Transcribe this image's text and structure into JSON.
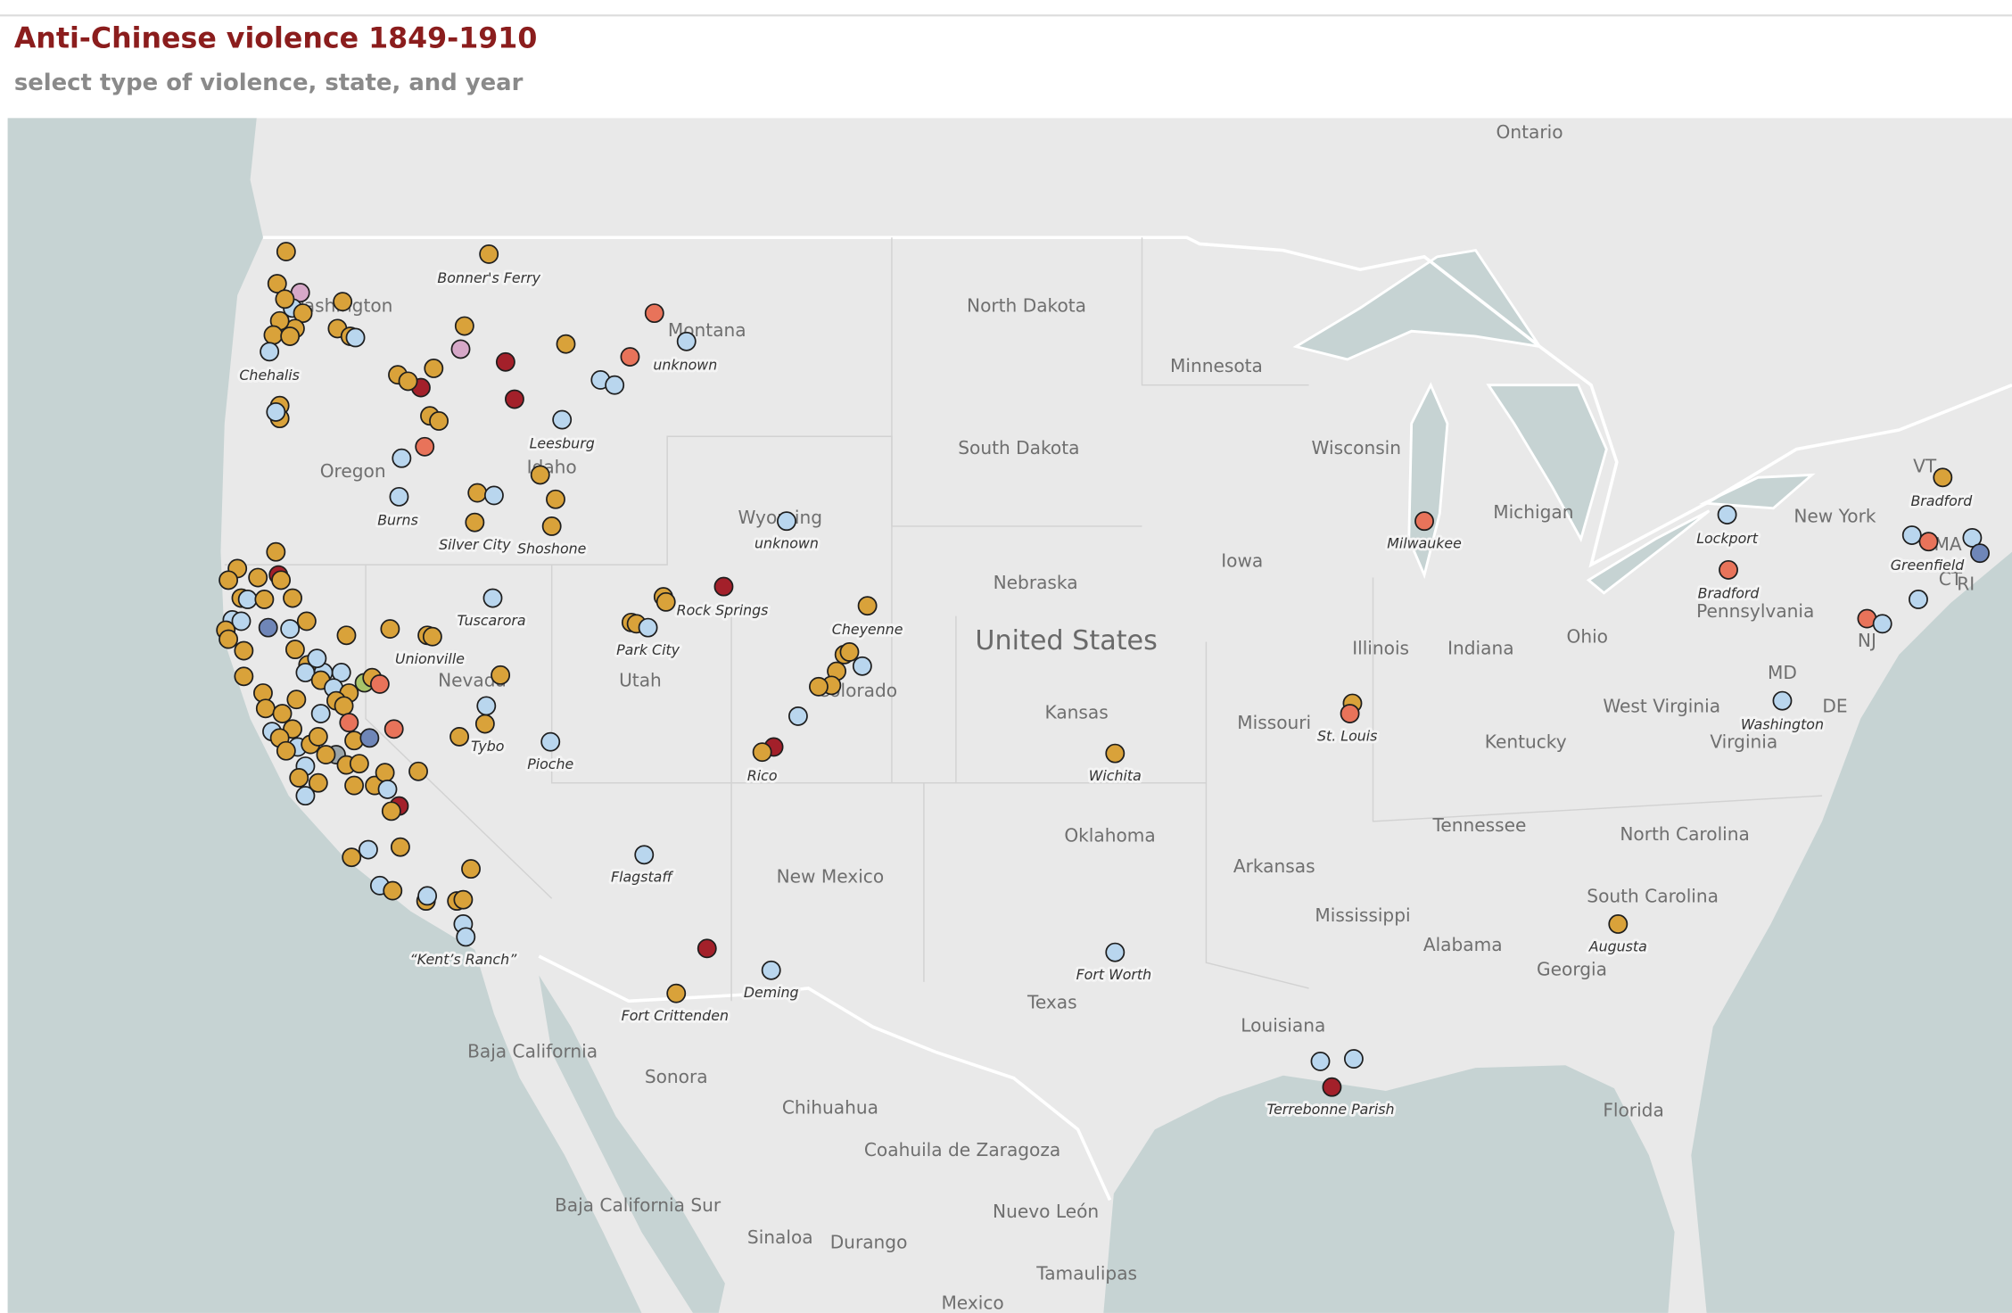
{
  "header": {
    "title": "Anti-Chinese violence 1849-1910",
    "subtitle": "select type of violence, state, and year"
  },
  "map": {
    "country_label": "United States",
    "region_labels": [
      "Ontario",
      "North Dakota",
      "Washington",
      "Montana",
      "Minnesota",
      "South Dakota",
      "Wisconsin",
      "Michigan",
      "Oregon",
      "Idaho",
      "Wyoming",
      "Iowa",
      "New York",
      "Nebraska",
      "Pennsylvania",
      "Illinois",
      "Indiana",
      "Ohio",
      "Utah",
      "Nevada",
      "Colorado",
      "Kansas",
      "Missouri",
      "West Virginia",
      "Kentucky",
      "Virginia",
      "MD",
      "DE",
      "NJ",
      "VT",
      "MA",
      "CT",
      "RI",
      "Tennessee",
      "North Carolina",
      "Oklahoma",
      "Arkansas",
      "New Mexico",
      "South Carolina",
      "Mississippi",
      "Alabama",
      "Georgia",
      "Texas",
      "Louisiana",
      "Florida",
      "Baja California",
      "Sonora",
      "Chihuahua",
      "Coahuila de Zaragoza",
      "Baja California Sur",
      "Nuevo León",
      "Sinaloa",
      "Durango",
      "Tamaulipas",
      "Mexico"
    ],
    "place_labels": [
      "Bonner's Ferry",
      "Chehalis",
      "unknown",
      "Leesburg",
      "Burns",
      "Silver City",
      "Shoshone",
      "unknown",
      "Rock Springs",
      "Tuscarora",
      "Cheyenne",
      "Park City",
      "Unionville",
      "Tybo",
      "Pioche",
      "Rico",
      "Wichita",
      "Milwaukee",
      "Lockport",
      "Bradford",
      "Greenfield",
      "Bradford",
      "St. Louis",
      "Washington",
      "Flagstaff",
      "“Kent’s Ranch”",
      "Fort Crittenden",
      "Deming",
      "Fort Worth",
      "Augusta",
      "Terrebonne Parish"
    ]
  }
}
